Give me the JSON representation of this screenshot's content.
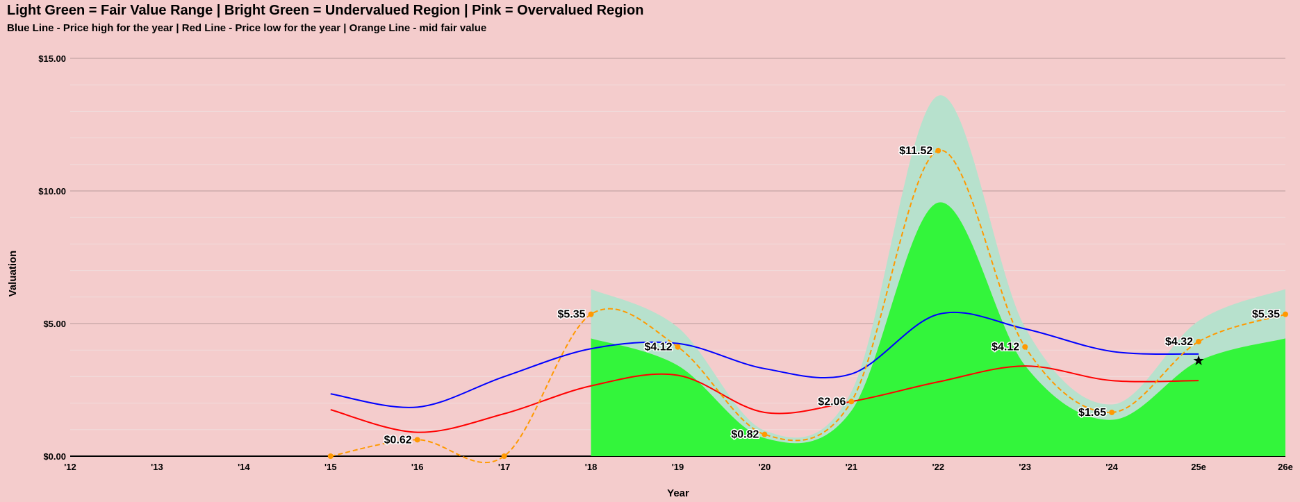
{
  "chart_data": {
    "type": "area",
    "title": "Light Green = Fair Value Range | Bright Green = Undervalued Region | Pink = Overvalued Region",
    "subtitle": "Blue Line - Price high for the year | Red Line - Price low for the year | Orange Line - mid fair value",
    "xlabel": "Year",
    "ylabel": "Valuation",
    "categories": [
      "'12",
      "'13",
      "'14",
      "'15",
      "'16",
      "'17",
      "'18",
      "'19",
      "'20",
      "'21",
      "'22",
      "'23",
      "'24",
      "25e",
      "26e"
    ],
    "y_ticks": [
      "$0.00",
      "$5.00",
      "$10.00",
      "$15.00"
    ],
    "ylim": [
      0,
      15
    ],
    "grid": true,
    "legend": "none",
    "series": [
      {
        "key": "fair_high",
        "color": "#b7e1cd",
        "values": [
          null,
          null,
          null,
          null,
          null,
          null,
          6.3,
          4.86,
          0.97,
          2.43,
          13.59,
          4.86,
          1.95,
          5.1,
          6.3
        ]
      },
      {
        "key": "fair_low",
        "color": "#33f53b",
        "values": [
          null,
          null,
          null,
          null,
          null,
          null,
          4.44,
          3.42,
          0.68,
          1.71,
          9.56,
          3.42,
          1.37,
          3.59,
          4.44
        ]
      },
      {
        "key": "price_high",
        "color": "#0000ff",
        "values": [
          null,
          null,
          null,
          2.35,
          1.85,
          3.0,
          4.05,
          4.25,
          3.3,
          3.1,
          5.35,
          4.8,
          3.95,
          3.85,
          null
        ]
      },
      {
        "key": "price_low",
        "color": "#ff0000",
        "values": [
          null,
          null,
          null,
          1.75,
          0.9,
          1.6,
          2.65,
          3.05,
          1.65,
          2.06,
          2.8,
          3.4,
          2.85,
          2.85,
          null
        ]
      },
      {
        "key": "mid_fair_value",
        "color": "#ff9900",
        "values": [
          null,
          null,
          null,
          0,
          0.62,
          0,
          5.35,
          4.12,
          0.82,
          2.06,
          11.52,
          4.12,
          1.65,
          4.32,
          5.35
        ]
      }
    ],
    "data_labels": [
      {
        "x": "'16",
        "value": 0.62,
        "text": "$0.62"
      },
      {
        "x": "'18",
        "value": 5.35,
        "text": "$5.35"
      },
      {
        "x": "'19",
        "value": 4.12,
        "text": "$4.12"
      },
      {
        "x": "'20",
        "value": 0.82,
        "text": "$0.82"
      },
      {
        "x": "'21",
        "value": 2.06,
        "text": "$2.06"
      },
      {
        "x": "'22",
        "value": 11.52,
        "text": "$11.52"
      },
      {
        "x": "'23",
        "value": 4.12,
        "text": "$4.12"
      },
      {
        "x": "'24",
        "value": 1.65,
        "text": "$1.65"
      },
      {
        "x": "25e",
        "value": 4.32,
        "text": "$4.32"
      },
      {
        "x": "26e",
        "value": 5.35,
        "text": "$5.35"
      }
    ],
    "current_price_marker": {
      "x": "25e",
      "value": 3.6,
      "icon": "star-icon"
    }
  }
}
